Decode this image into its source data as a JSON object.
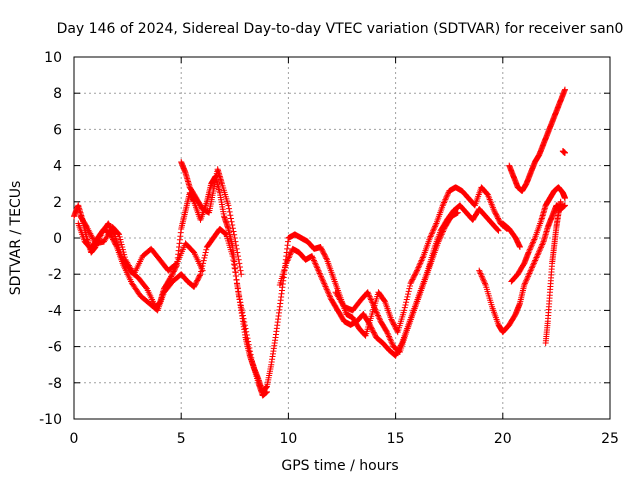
{
  "chart_data": {
    "type": "scatter",
    "title": "Day 146 of 2024, Sidereal Day-to-day VTEC variation (SDTVAR) for receiver san0",
    "xlabel": "GPS time / hours",
    "ylabel": "SDTVAR / TECUs",
    "xlim": [
      0,
      25
    ],
    "ylim": [
      -10,
      10
    ],
    "grid": true,
    "marker": "+",
    "xticks": [
      0,
      5,
      10,
      15,
      20,
      25
    ],
    "xtick_labels": [
      "0",
      "5",
      "10",
      "15",
      "20",
      "25"
    ],
    "yticks": [
      -10,
      -8,
      -6,
      -4,
      -2,
      0,
      2,
      4,
      6,
      8,
      10
    ],
    "ytick_labels": [
      "-10",
      "-8",
      "-6",
      "-4",
      "-2",
      "0",
      "2",
      "4",
      "6",
      "8",
      "10"
    ],
    "series": [
      {
        "name": "SDTVAR",
        "color": "#ff0000",
        "tracks": [
          [
            [
              0,
              1.2
            ],
            [
              0.2,
              1.8
            ],
            [
              0.4,
              1.0
            ],
            [
              0.6,
              0.0
            ],
            [
              0.8,
              -0.8
            ],
            [
              1.0,
              -0.5
            ],
            [
              1.3,
              0.3
            ],
            [
              1.6,
              0.8
            ],
            [
              1.9,
              0.2
            ],
            [
              2.2,
              -1.0
            ],
            [
              2.6,
              -1.8
            ],
            [
              3.0,
              -2.2
            ],
            [
              3.4,
              -2.8
            ],
            [
              3.8,
              -3.8
            ],
            [
              4.0,
              -3.6
            ],
            [
              4.2,
              -2.8
            ],
            [
              4.5,
              -2.2
            ],
            [
              4.8,
              -1.5
            ],
            [
              5.0,
              0.5
            ],
            [
              5.2,
              1.5
            ],
            [
              5.4,
              2.5
            ],
            [
              5.6,
              2.0
            ],
            [
              5.9,
              1.0
            ],
            [
              6.2,
              2.0
            ],
            [
              6.4,
              3.0
            ],
            [
              6.6,
              3.4
            ],
            [
              6.8,
              2.5
            ],
            [
              7.0,
              1.2
            ],
            [
              7.2,
              0.5
            ],
            [
              7.4,
              -0.5
            ],
            [
              7.6,
              -2.5
            ],
            [
              7.8,
              -4.0
            ],
            [
              8.0,
              -5.5
            ],
            [
              8.2,
              -6.5
            ],
            [
              8.4,
              -7.2
            ],
            [
              8.6,
              -7.8
            ],
            [
              8.8,
              -8.5
            ],
            [
              9.0,
              -8.2
            ],
            [
              9.2,
              -7.0
            ],
            [
              9.4,
              -5.5
            ],
            [
              9.6,
              -3.8
            ],
            [
              9.8,
              -2.0
            ],
            [
              10.0,
              0.0
            ],
            [
              10.3,
              0.2
            ],
            [
              10.6,
              0.0
            ],
            [
              10.9,
              -0.2
            ],
            [
              11.2,
              -0.6
            ],
            [
              11.5,
              -0.5
            ],
            [
              11.8,
              -1.2
            ],
            [
              12.1,
              -2.2
            ],
            [
              12.4,
              -3.2
            ],
            [
              12.7,
              -4.2
            ],
            [
              13.0,
              -4.4
            ],
            [
              13.3,
              -5.0
            ],
            [
              13.6,
              -5.4
            ],
            [
              13.9,
              -4.2
            ],
            [
              14.2,
              -3.0
            ],
            [
              14.5,
              -3.5
            ],
            [
              14.8,
              -4.5
            ],
            [
              15.1,
              -5.2
            ],
            [
              15.4,
              -4.0
            ],
            [
              15.7,
              -2.5
            ],
            [
              16.0,
              -1.8
            ],
            [
              16.3,
              -1.0
            ],
            [
              16.6,
              0.0
            ],
            [
              16.9,
              0.8
            ],
            [
              17.2,
              1.8
            ],
            [
              17.5,
              2.6
            ],
            [
              17.8,
              2.8
            ],
            [
              18.1,
              2.6
            ],
            [
              18.4,
              2.2
            ],
            [
              18.7,
              1.8
            ],
            [
              19.0,
              2.8
            ],
            [
              19.3,
              2.4
            ],
            [
              19.6,
              1.5
            ],
            [
              19.9,
              0.8
            ],
            [
              20.2,
              0.5
            ]
          ],
          [
            [
              0.2,
              0.8
            ],
            [
              0.5,
              -0.2
            ],
            [
              0.8,
              -0.6
            ],
            [
              1.1,
              0.0
            ],
            [
              1.4,
              0.5
            ],
            [
              1.7,
              0.2
            ],
            [
              2.0,
              -0.5
            ],
            [
              2.3,
              -1.5
            ],
            [
              2.7,
              -2.5
            ],
            [
              3.1,
              -3.2
            ],
            [
              3.5,
              -3.6
            ],
            [
              3.9,
              -4.0
            ],
            [
              4.2,
              -3.0
            ],
            [
              4.6,
              -2.4
            ],
            [
              5.0,
              -2.0
            ],
            [
              5.3,
              -2.4
            ],
            [
              5.6,
              -2.7
            ],
            [
              5.9,
              -2.0
            ],
            [
              6.2,
              -0.5
            ],
            [
              6.5,
              0.0
            ],
            [
              6.8,
              0.5
            ],
            [
              7.1,
              0.2
            ],
            [
              7.4,
              -1.0
            ],
            [
              7.7,
              -3.2
            ],
            [
              8.0,
              -5.0
            ],
            [
              8.3,
              -6.8
            ],
            [
              8.6,
              -8.0
            ],
            [
              8.8,
              -8.7
            ],
            [
              9.0,
              -8.5
            ]
          ],
          [
            [
              0.3,
              1.2
            ],
            [
              0.6,
              0.6
            ],
            [
              1.0,
              -0.3
            ],
            [
              1.4,
              -0.2
            ],
            [
              1.8,
              0.6
            ],
            [
              2.1,
              0.2
            ],
            [
              2.4,
              -1.2
            ],
            [
              2.8,
              -2.0
            ],
            [
              3.2,
              -1.0
            ],
            [
              3.6,
              -0.6
            ],
            [
              4.0,
              -1.2
            ],
            [
              4.4,
              -1.8
            ],
            [
              4.8,
              -1.4
            ],
            [
              5.2,
              -0.3
            ],
            [
              5.6,
              -0.8
            ],
            [
              6.0,
              -1.8
            ]
          ],
          [
            [
              5.0,
              4.2
            ],
            [
              5.2,
              3.6
            ],
            [
              5.4,
              2.8
            ],
            [
              5.7,
              2.2
            ],
            [
              6.0,
              1.6
            ],
            [
              6.3,
              1.4
            ],
            [
              6.5,
              2.6
            ],
            [
              6.7,
              3.8
            ],
            [
              6.9,
              3.0
            ],
            [
              7.2,
              1.8
            ],
            [
              7.5,
              0.0
            ],
            [
              7.8,
              -2.0
            ]
          ],
          [
            [
              9.6,
              -2.6
            ],
            [
              9.9,
              -1.4
            ],
            [
              10.2,
              -0.6
            ],
            [
              10.5,
              -0.8
            ],
            [
              10.8,
              -1.2
            ],
            [
              11.1,
              -1.0
            ],
            [
              11.4,
              -1.8
            ],
            [
              11.7,
              -2.6
            ],
            [
              12.0,
              -3.4
            ],
            [
              12.3,
              -4.0
            ],
            [
              12.6,
              -4.6
            ],
            [
              12.9,
              -4.8
            ],
            [
              13.2,
              -4.6
            ],
            [
              13.5,
              -4.2
            ],
            [
              13.8,
              -4.8
            ],
            [
              14.1,
              -5.5
            ],
            [
              14.4,
              -5.8
            ],
            [
              14.7,
              -6.2
            ],
            [
              15.0,
              -6.5
            ],
            [
              15.3,
              -5.8
            ],
            [
              15.6,
              -4.8
            ],
            [
              15.9,
              -3.8
            ],
            [
              16.2,
              -2.8
            ],
            [
              16.5,
              -1.8
            ],
            [
              16.8,
              -0.6
            ],
            [
              17.1,
              0.4
            ],
            [
              17.4,
              1.0
            ],
            [
              17.7,
              1.5
            ],
            [
              18.0,
              1.8
            ],
            [
              18.3,
              1.4
            ],
            [
              18.6,
              1.0
            ],
            [
              18.9,
              1.6
            ],
            [
              19.2,
              1.2
            ],
            [
              19.5,
              0.8
            ],
            [
              19.8,
              0.4
            ]
          ],
          [
            [
              12.2,
              -3.0
            ],
            [
              12.6,
              -3.8
            ],
            [
              13.0,
              -4.0
            ],
            [
              13.4,
              -3.4
            ],
            [
              13.7,
              -3.0
            ],
            [
              14.0,
              -3.8
            ],
            [
              14.3,
              -4.6
            ],
            [
              14.6,
              -5.2
            ],
            [
              14.9,
              -6.0
            ],
            [
              15.2,
              -6.3
            ],
            [
              15.5,
              -5.2
            ],
            [
              15.8,
              -4.2
            ],
            [
              16.1,
              -3.2
            ],
            [
              16.4,
              -2.2
            ],
            [
              16.7,
              -1.2
            ],
            [
              17.0,
              -0.2
            ],
            [
              17.3,
              0.6
            ],
            [
              17.6,
              1.2
            ],
            [
              17.9,
              1.4
            ]
          ],
          [
            [
              18.9,
              -1.8
            ],
            [
              19.2,
              -2.6
            ],
            [
              19.5,
              -3.8
            ],
            [
              19.8,
              -4.8
            ],
            [
              20.0,
              -5.2
            ],
            [
              20.3,
              -4.8
            ],
            [
              20.6,
              -4.2
            ],
            [
              20.8,
              -3.6
            ],
            [
              21.0,
              -2.6
            ],
            [
              21.3,
              -1.8
            ],
            [
              21.6,
              -1.0
            ],
            [
              21.9,
              -0.2
            ],
            [
              22.1,
              0.6
            ],
            [
              22.3,
              1.2
            ],
            [
              22.5,
              1.8
            ],
            [
              22.7,
              1.6
            ],
            [
              22.9,
              1.8
            ]
          ],
          [
            [
              20.4,
              -2.4
            ],
            [
              20.7,
              -2.0
            ],
            [
              21.0,
              -1.4
            ],
            [
              21.2,
              -0.8
            ],
            [
              21.5,
              0.0
            ],
            [
              21.8,
              1.0
            ],
            [
              22.0,
              1.8
            ],
            [
              22.2,
              2.2
            ],
            [
              22.4,
              2.6
            ],
            [
              22.6,
              2.8
            ],
            [
              22.8,
              2.5
            ],
            [
              22.9,
              2.2
            ]
          ],
          [
            [
              20.3,
              4.0
            ],
            [
              20.5,
              3.4
            ],
            [
              20.7,
              2.8
            ],
            [
              20.9,
              2.6
            ],
            [
              21.1,
              3.0
            ],
            [
              21.3,
              3.6
            ],
            [
              21.5,
              4.2
            ],
            [
              21.7,
              4.6
            ],
            [
              21.9,
              5.2
            ],
            [
              22.1,
              5.8
            ],
            [
              22.3,
              6.4
            ],
            [
              22.5,
              7.0
            ],
            [
              22.7,
              7.6
            ],
            [
              22.9,
              8.2
            ]
          ],
          [
            [
              22.0,
              -5.8
            ],
            [
              22.1,
              -4.6
            ],
            [
              22.2,
              -3.0
            ],
            [
              22.3,
              -1.4
            ],
            [
              22.4,
              -0.4
            ],
            [
              22.5,
              0.6
            ],
            [
              22.6,
              1.4
            ],
            [
              22.7,
              2.0
            ]
          ],
          [
            [
              22.8,
              4.8
            ],
            [
              22.9,
              4.7
            ]
          ],
          [
            [
              20.0,
              0.8
            ],
            [
              20.3,
              0.5
            ],
            [
              20.6,
              0.0
            ],
            [
              20.8,
              -0.5
            ]
          ]
        ]
      }
    ]
  }
}
